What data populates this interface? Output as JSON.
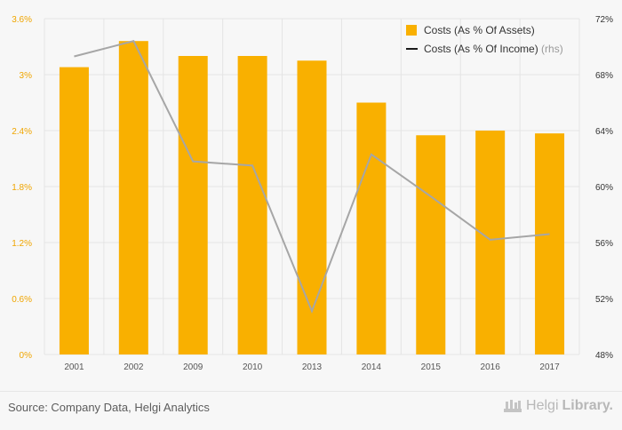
{
  "chart_data": {
    "type": "bar",
    "categories": [
      "2001",
      "2002",
      "2009",
      "2010",
      "2013",
      "2014",
      "2015",
      "2016",
      "2017"
    ],
    "series": [
      {
        "name": "Costs (As % Of Assets)",
        "type": "bar",
        "axis": "left",
        "values": [
          3.08,
          3.36,
          3.2,
          3.2,
          3.15,
          2.7,
          2.35,
          2.4,
          2.37
        ]
      },
      {
        "name": "Costs (As % Of Income)",
        "axis_note": "(rhs)",
        "type": "line",
        "axis": "right",
        "values": [
          69.3,
          70.4,
          61.8,
          61.5,
          51.1,
          62.3,
          59.3,
          56.2,
          56.6
        ]
      }
    ],
    "y_left": {
      "ticks": [
        "0%",
        "0.6%",
        "1.2%",
        "1.8%",
        "2.4%",
        "3%",
        "3.6%"
      ],
      "range": [
        0,
        3.6
      ]
    },
    "y_right": {
      "ticks": [
        "48%",
        "52%",
        "56%",
        "60%",
        "64%",
        "68%",
        "72%"
      ],
      "range": [
        48,
        72
      ]
    },
    "grid": true,
    "legend_position": "top-right",
    "colors": {
      "bar": "#f9b000",
      "line": "#a6a6a6",
      "left_axis_text": "#f0a500",
      "right_axis_text": "#333333",
      "grid": "#e4e4e4"
    }
  },
  "footer": {
    "source": "Source: Company Data, Helgi Analytics",
    "logo_light": "Helgi",
    "logo_bold": "Library."
  }
}
